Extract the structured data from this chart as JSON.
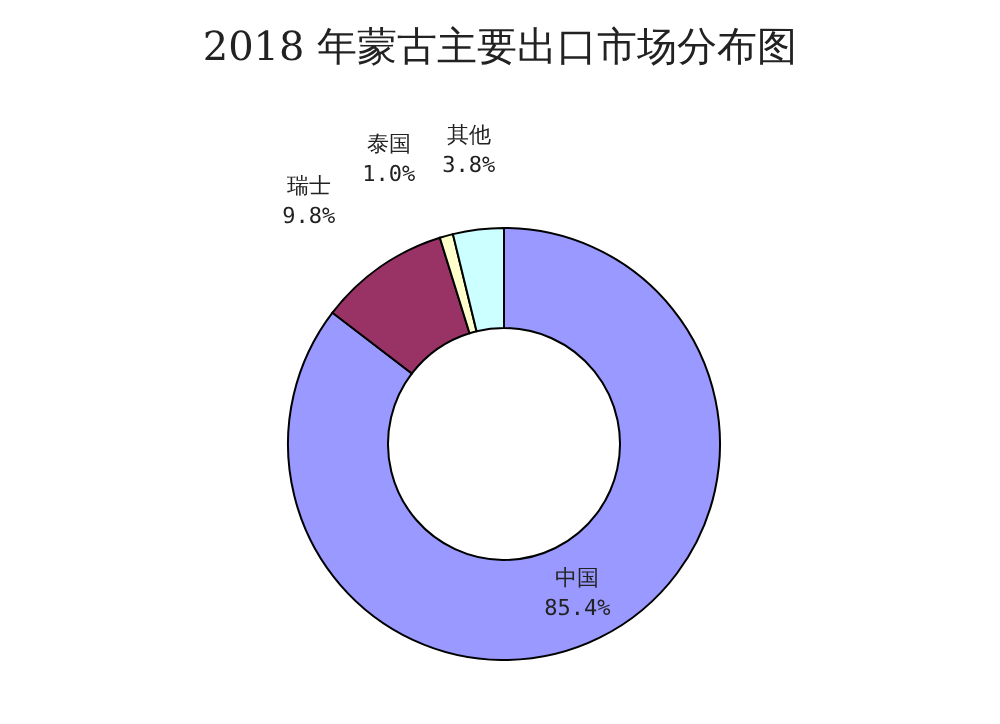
{
  "chart_data": {
    "type": "donut",
    "title": "2018 年蒙古主要出口市场分布图",
    "categories": [
      "中国",
      "瑞士",
      "泰国",
      "其他"
    ],
    "values": [
      85.4,
      9.8,
      1.0,
      3.8
    ],
    "colors": [
      "#9999ff",
      "#993366",
      "#ffffcc",
      "#ccffff"
    ],
    "value_labels": [
      "85.4%",
      "9.8%",
      "1.0%",
      "3.8%"
    ],
    "legend": false
  }
}
